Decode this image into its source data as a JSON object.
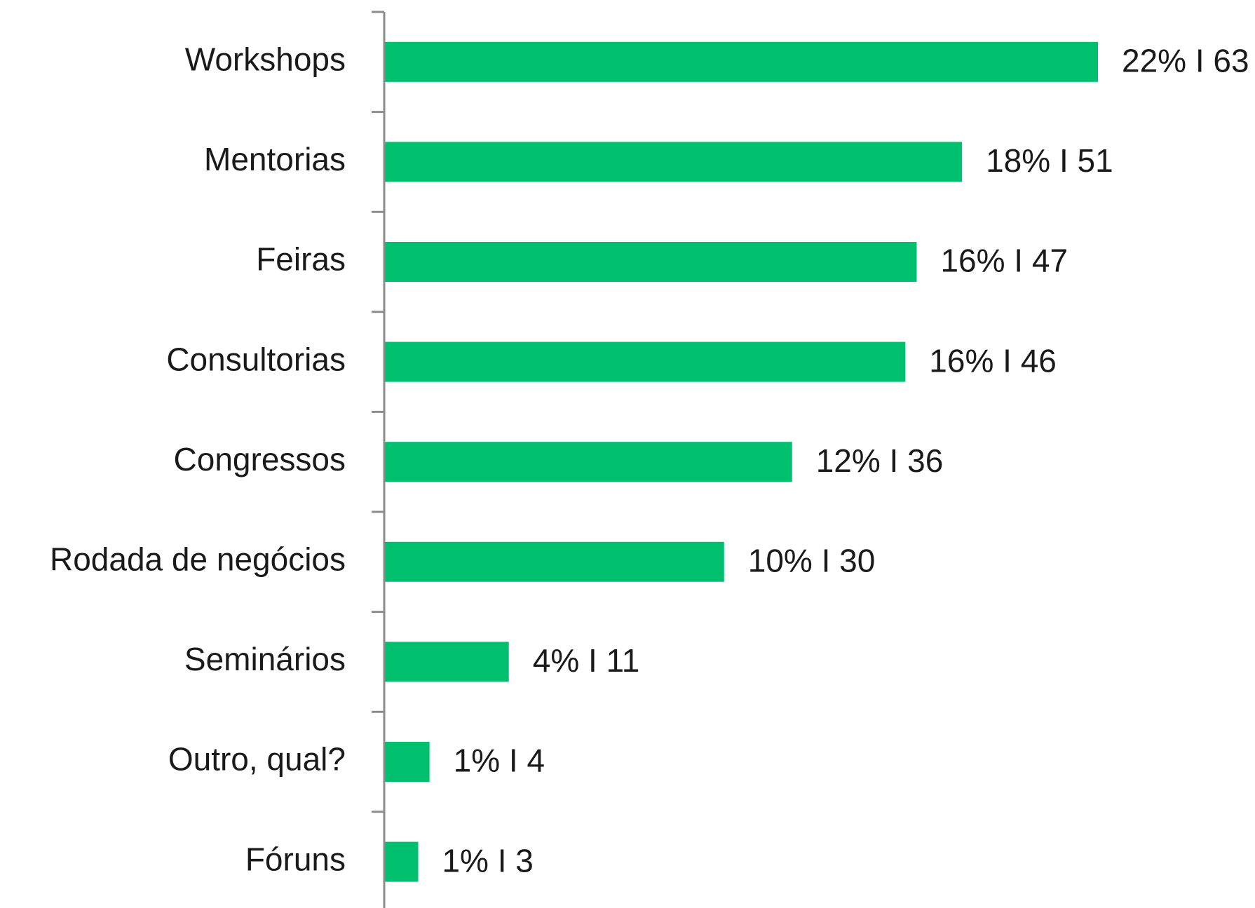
{
  "chart_data": {
    "type": "hbar",
    "categories": [
      "Workshops",
      "Mentorias",
      "Feiras",
      "Consultorias",
      "Congressos",
      "Rodada de negócios",
      "Seminários",
      "Outro, qual?",
      "Fóruns"
    ],
    "values": [
      63,
      51,
      47,
      46,
      36,
      30,
      11,
      4,
      3
    ],
    "value_labels": [
      "22% I 63",
      "18% I 51",
      "16% I 47",
      "16% I 46",
      "12% I 36",
      "10% I 30",
      "4% I 11",
      "1% I 4",
      "1% I 3"
    ],
    "color": "#00bf6f"
  }
}
